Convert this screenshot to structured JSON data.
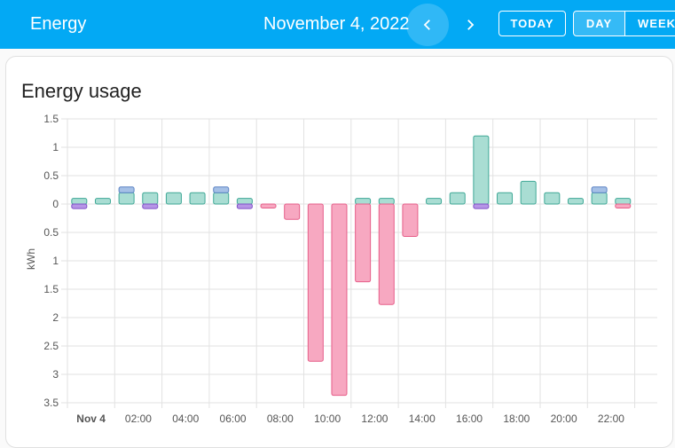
{
  "header": {
    "title": "Energy",
    "date": "November 4, 2022",
    "today_label": "TODAY",
    "day_label": "DAY",
    "week_label": "WEEK"
  },
  "card": {
    "title": "Energy usage"
  },
  "colors": {
    "appbar": "#03a9f4",
    "consumption": "#a9ddd3",
    "consumption_border": "#3fa896",
    "grid_return": "#f7a8c1",
    "grid_return_border": "#e65e89",
    "battery_in": "#a5c0e6",
    "battery_out": "#b695e6"
  },
  "chart_data": {
    "type": "bar",
    "title": "Energy usage",
    "ylabel": "kWh",
    "ylim": [
      -3.5,
      1.5
    ],
    "y_ticks": [
      {
        "v": 1.5,
        "label": "1.5"
      },
      {
        "v": 1,
        "label": "1"
      },
      {
        "v": 0.5,
        "label": "0.5"
      },
      {
        "v": 0,
        "label": "0"
      },
      {
        "v": -0.5,
        "label": "0.5"
      },
      {
        "v": -1,
        "label": "1"
      },
      {
        "v": -1.5,
        "label": "1.5"
      },
      {
        "v": -2,
        "label": "2"
      },
      {
        "v": -2.5,
        "label": "2.5"
      },
      {
        "v": -3,
        "label": "3"
      },
      {
        "v": -3.5,
        "label": "3.5"
      }
    ],
    "x_labels": [
      "Nov 4",
      "02:00",
      "04:00",
      "06:00",
      "08:00",
      "10:00",
      "12:00",
      "14:00",
      "16:00",
      "18:00",
      "20:00",
      "22:00"
    ],
    "hours": [
      0,
      1,
      2,
      3,
      4,
      5,
      6,
      7,
      8,
      9,
      10,
      11,
      12,
      13,
      14,
      15,
      16,
      17,
      18,
      19,
      20,
      21,
      22,
      23
    ],
    "series": [
      {
        "key": "consumption",
        "values": [
          0.1,
          0.1,
          0.2,
          0.2,
          0.2,
          0.2,
          0.2,
          0.1,
          0,
          0,
          0,
          0,
          0.1,
          0.1,
          0,
          0.1,
          0.2,
          1.2,
          0.2,
          0.4,
          0.2,
          0.1,
          0.2,
          0.1
        ]
      },
      {
        "key": "battery_in",
        "values": [
          0,
          0,
          0.1,
          0,
          0,
          0,
          0.1,
          0,
          0,
          0,
          0,
          0,
          0,
          0,
          0,
          0,
          0,
          0,
          0,
          0,
          0,
          0,
          0.1,
          0
        ]
      },
      {
        "key": "grid_return",
        "values": [
          0,
          0,
          0,
          0,
          0,
          0,
          0,
          0,
          -0.07,
          -0.27,
          -2.77,
          -3.37,
          -1.37,
          -1.77,
          -0.57,
          0,
          0,
          0,
          0,
          0,
          0,
          0,
          0,
          -0.07
        ]
      },
      {
        "key": "battery_out",
        "values": [
          -0.08,
          0,
          0,
          -0.08,
          0,
          0,
          0,
          -0.08,
          0,
          0,
          0,
          0,
          0,
          0,
          0,
          0,
          0,
          -0.08,
          0,
          0,
          0,
          0,
          0,
          0
        ]
      }
    ]
  }
}
